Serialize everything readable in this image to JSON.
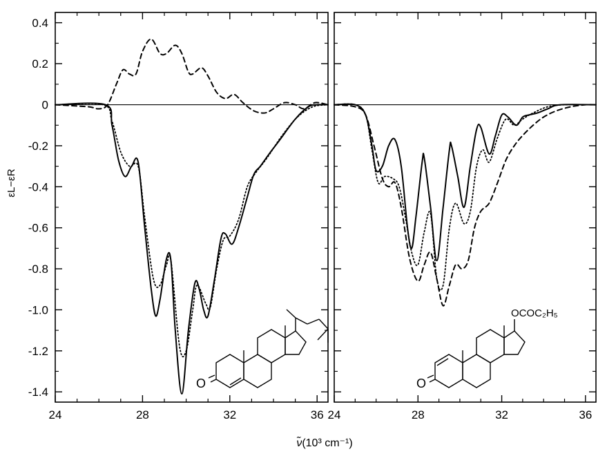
{
  "ylabel": "εL−εR",
  "xlabel_nu": "ν̃",
  "xlabel_rest": "(10³ cm⁻¹)",
  "chart_data": [
    {
      "type": "line",
      "panel": "left",
      "xlim": [
        24,
        36.5
      ],
      "ylim": [
        -1.45,
        0.45
      ],
      "x_ticks": [
        24,
        28,
        32,
        36
      ],
      "y_ticks": [
        0.4,
        0.2,
        0,
        -0.2,
        -0.4,
        -0.6,
        -0.8,
        -1.0,
        -1.2,
        -1.4
      ],
      "y_tick_labels": [
        "0.4",
        "0.2",
        "0",
        "-0.2",
        "-0.4",
        "-0.6",
        "-0.8",
        "-1.0",
        "-1.2",
        "-1.4"
      ],
      "grid": false,
      "zero_line": true,
      "structure_label": "O",
      "series": [
        {
          "style": "solid",
          "points": [
            [
              24,
              0
            ],
            [
              26.3,
              0
            ],
            [
              26.6,
              -0.1
            ],
            [
              26.9,
              -0.27
            ],
            [
              27.2,
              -0.35
            ],
            [
              27.5,
              -0.3
            ],
            [
              27.8,
              -0.28
            ],
            [
              28.1,
              -0.6
            ],
            [
              28.4,
              -0.9
            ],
            [
              28.6,
              -1.03
            ],
            [
              28.8,
              -0.95
            ],
            [
              29.1,
              -0.75
            ],
            [
              29.3,
              -0.76
            ],
            [
              29.5,
              -1.1
            ],
            [
              29.8,
              -1.41
            ],
            [
              30.1,
              -1.1
            ],
            [
              30.4,
              -0.87
            ],
            [
              30.6,
              -0.9
            ],
            [
              30.8,
              -1.0
            ],
            [
              31.0,
              -1.03
            ],
            [
              31.3,
              -0.85
            ],
            [
              31.6,
              -0.65
            ],
            [
              31.8,
              -0.63
            ],
            [
              32.1,
              -0.68
            ],
            [
              32.4,
              -0.6
            ],
            [
              32.8,
              -0.45
            ],
            [
              33.1,
              -0.34
            ],
            [
              33.4,
              -0.3
            ],
            [
              33.8,
              -0.24
            ],
            [
              34.3,
              -0.17
            ],
            [
              35,
              -0.07
            ],
            [
              35.6,
              -0.01
            ],
            [
              36,
              0
            ],
            [
              36.5,
              0
            ]
          ]
        },
        {
          "style": "dotted",
          "points": [
            [
              24,
              0
            ],
            [
              26.2,
              0
            ],
            [
              26.6,
              -0.08
            ],
            [
              27,
              -0.23
            ],
            [
              27.4,
              -0.3
            ],
            [
              27.8,
              -0.3
            ],
            [
              28.1,
              -0.55
            ],
            [
              28.5,
              -0.85
            ],
            [
              28.8,
              -0.88
            ],
            [
              29.1,
              -0.78
            ],
            [
              29.3,
              -0.76
            ],
            [
              29.7,
              -1.18
            ],
            [
              30.0,
              -1.2
            ],
            [
              30.3,
              -1.0
            ],
            [
              30.5,
              -0.88
            ],
            [
              30.9,
              -0.97
            ],
            [
              31.1,
              -0.99
            ],
            [
              31.4,
              -0.8
            ],
            [
              31.7,
              -0.66
            ],
            [
              32.0,
              -0.64
            ],
            [
              32.4,
              -0.56
            ],
            [
              32.8,
              -0.4
            ],
            [
              33.2,
              -0.33
            ],
            [
              33.7,
              -0.26
            ],
            [
              34.4,
              -0.15
            ],
            [
              35.1,
              -0.06
            ],
            [
              35.8,
              -0.01
            ],
            [
              36.5,
              0
            ]
          ]
        },
        {
          "style": "dashed",
          "points": [
            [
              24,
              0
            ],
            [
              25.5,
              -0.01
            ],
            [
              26.0,
              -0.02
            ],
            [
              26.4,
              0
            ],
            [
              26.8,
              0.1
            ],
            [
              27.1,
              0.17
            ],
            [
              27.4,
              0.15
            ],
            [
              27.7,
              0.15
            ],
            [
              28.0,
              0.26
            ],
            [
              28.4,
              0.32
            ],
            [
              28.8,
              0.25
            ],
            [
              29.1,
              0.25
            ],
            [
              29.5,
              0.29
            ],
            [
              29.8,
              0.25
            ],
            [
              30.1,
              0.16
            ],
            [
              30.3,
              0.15
            ],
            [
              30.7,
              0.18
            ],
            [
              31.0,
              0.14
            ],
            [
              31.4,
              0.06
            ],
            [
              31.8,
              0.03
            ],
            [
              32.2,
              0.05
            ],
            [
              32.6,
              0.01
            ],
            [
              33.1,
              -0.03
            ],
            [
              33.6,
              -0.04
            ],
            [
              34.0,
              -0.02
            ],
            [
              34.5,
              0.01
            ],
            [
              35.0,
              0
            ],
            [
              35.4,
              -0.02
            ],
            [
              35.9,
              0.01
            ],
            [
              36.5,
              0
            ]
          ]
        }
      ]
    },
    {
      "type": "line",
      "panel": "right",
      "xlim": [
        24,
        36.5
      ],
      "ylim": [
        -1.45,
        0.45
      ],
      "x_ticks": [
        24,
        28,
        32,
        36
      ],
      "grid": false,
      "zero_line": true,
      "structure_label": "O",
      "substituent_label": "OCOC₂H₅",
      "series": [
        {
          "style": "solid",
          "points": [
            [
              24,
              0
            ],
            [
              25.0,
              0
            ],
            [
              25.5,
              -0.05
            ],
            [
              25.8,
              -0.2
            ],
            [
              26.0,
              -0.32
            ],
            [
              26.3,
              -0.3
            ],
            [
              26.6,
              -0.2
            ],
            [
              26.9,
              -0.17
            ],
            [
              27.2,
              -0.3
            ],
            [
              27.5,
              -0.6
            ],
            [
              27.7,
              -0.7
            ],
            [
              27.9,
              -0.55
            ],
            [
              28.2,
              -0.28
            ],
            [
              28.3,
              -0.26
            ],
            [
              28.6,
              -0.5
            ],
            [
              28.9,
              -0.76
            ],
            [
              29.2,
              -0.5
            ],
            [
              29.5,
              -0.22
            ],
            [
              29.6,
              -0.2
            ],
            [
              29.9,
              -0.35
            ],
            [
              30.2,
              -0.5
            ],
            [
              30.5,
              -0.3
            ],
            [
              30.8,
              -0.12
            ],
            [
              31.0,
              -0.11
            ],
            [
              31.4,
              -0.24
            ],
            [
              31.7,
              -0.15
            ],
            [
              32.0,
              -0.05
            ],
            [
              32.3,
              -0.06
            ],
            [
              32.7,
              -0.1
            ],
            [
              33.0,
              -0.06
            ],
            [
              33.3,
              -0.05
            ],
            [
              33.7,
              -0.04
            ],
            [
              34.2,
              -0.02
            ],
            [
              34.8,
              0
            ],
            [
              36.5,
              0
            ]
          ]
        },
        {
          "style": "dotted",
          "points": [
            [
              24,
              0
            ],
            [
              25.0,
              0
            ],
            [
              25.5,
              -0.05
            ],
            [
              25.8,
              -0.22
            ],
            [
              26.1,
              -0.38
            ],
            [
              26.4,
              -0.35
            ],
            [
              26.8,
              -0.36
            ],
            [
              27.1,
              -0.4
            ],
            [
              27.4,
              -0.55
            ],
            [
              27.7,
              -0.72
            ],
            [
              28.0,
              -0.78
            ],
            [
              28.3,
              -0.62
            ],
            [
              28.6,
              -0.53
            ],
            [
              28.9,
              -0.85
            ],
            [
              29.2,
              -0.88
            ],
            [
              29.5,
              -0.6
            ],
            [
              29.8,
              -0.48
            ],
            [
              30.2,
              -0.58
            ],
            [
              30.5,
              -0.52
            ],
            [
              30.8,
              -0.3
            ],
            [
              31.1,
              -0.22
            ],
            [
              31.4,
              -0.28
            ],
            [
              31.8,
              -0.16
            ],
            [
              32.2,
              -0.07
            ],
            [
              32.6,
              -0.1
            ],
            [
              33.0,
              -0.07
            ],
            [
              33.5,
              -0.04
            ],
            [
              34.2,
              -0.01
            ],
            [
              35,
              0
            ],
            [
              36.5,
              0
            ]
          ]
        },
        {
          "style": "dashed",
          "points": [
            [
              24,
              0
            ],
            [
              25.0,
              -0.01
            ],
            [
              25.5,
              -0.05
            ],
            [
              25.9,
              -0.2
            ],
            [
              26.3,
              -0.36
            ],
            [
              26.6,
              -0.4
            ],
            [
              26.9,
              -0.38
            ],
            [
              27.2,
              -0.5
            ],
            [
              27.6,
              -0.75
            ],
            [
              28.0,
              -0.86
            ],
            [
              28.3,
              -0.78
            ],
            [
              28.6,
              -0.72
            ],
            [
              28.9,
              -0.85
            ],
            [
              29.2,
              -0.98
            ],
            [
              29.5,
              -0.88
            ],
            [
              29.8,
              -0.78
            ],
            [
              30.1,
              -0.8
            ],
            [
              30.4,
              -0.76
            ],
            [
              30.7,
              -0.6
            ],
            [
              31.0,
              -0.52
            ],
            [
              31.4,
              -0.48
            ],
            [
              31.8,
              -0.38
            ],
            [
              32.2,
              -0.27
            ],
            [
              32.6,
              -0.2
            ],
            [
              33.0,
              -0.15
            ],
            [
              33.5,
              -0.1
            ],
            [
              34.0,
              -0.06
            ],
            [
              34.6,
              -0.03
            ],
            [
              35.3,
              -0.01
            ],
            [
              36,
              0
            ],
            [
              36.5,
              0
            ]
          ]
        }
      ]
    }
  ]
}
